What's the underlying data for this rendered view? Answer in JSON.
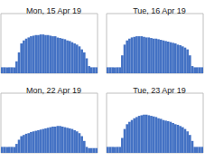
{
  "chart_data": [
    {
      "type": "bar",
      "title": "Mon, 15 Apr 19",
      "categories": [
        null,
        null,
        null,
        null,
        null,
        null,
        null,
        null,
        null,
        null,
        null,
        null,
        null,
        null,
        null,
        null,
        null,
        null,
        null,
        null,
        null,
        null,
        null,
        null,
        null,
        null,
        null,
        null,
        null,
        null,
        null,
        null,
        null,
        null,
        null,
        null,
        null,
        null,
        null,
        null
      ],
      "values": [
        10,
        10,
        10,
        10,
        10,
        10,
        20,
        35,
        50,
        55,
        58,
        60,
        62,
        63,
        64,
        64,
        65,
        65,
        64,
        64,
        63,
        62,
        62,
        60,
        59,
        58,
        57,
        55,
        54,
        52,
        50,
        48,
        45,
        40,
        35,
        25,
        12,
        10,
        10,
        10
      ],
      "color": "#4472c4",
      "ylim": [
        0,
        100
      ],
      "tick_labels": false,
      "grid": false
    },
    {
      "type": "bar",
      "title": "Tue, 16 Apr 19",
      "categories": [
        null,
        null,
        null,
        null,
        null,
        null,
        null,
        null,
        null,
        null,
        null,
        null,
        null,
        null,
        null,
        null,
        null,
        null,
        null,
        null,
        null,
        null,
        null,
        null,
        null,
        null,
        null,
        null,
        null,
        null,
        null,
        null,
        null,
        null,
        null,
        null,
        null,
        null,
        null,
        null
      ],
      "values": [
        10,
        10,
        10,
        10,
        10,
        10,
        30,
        48,
        55,
        58,
        60,
        61,
        62,
        62,
        62,
        61,
        60,
        60,
        59,
        58,
        58,
        57,
        56,
        55,
        54,
        53,
        52,
        51,
        50,
        48,
        47,
        45,
        43,
        40,
        30,
        12,
        10,
        10,
        10,
        10
      ],
      "color": "#4472c4",
      "ylim": [
        0,
        100
      ],
      "tick_labels": false,
      "grid": false
    },
    {
      "type": "bar",
      "title": "Mon, 22 Apr 19",
      "categories": [
        null,
        null,
        null,
        null,
        null,
        null,
        null,
        null,
        null,
        null,
        null,
        null,
        null,
        null,
        null,
        null,
        null,
        null,
        null,
        null,
        null,
        null,
        null,
        null,
        null,
        null,
        null,
        null,
        null,
        null,
        null,
        null,
        null,
        null,
        null,
        null,
        null,
        null,
        null,
        null
      ],
      "values": [
        10,
        10,
        10,
        10,
        10,
        10,
        15,
        22,
        28,
        30,
        32,
        33,
        35,
        36,
        37,
        38,
        39,
        40,
        41,
        42,
        43,
        44,
        44,
        45,
        45,
        44,
        43,
        42,
        41,
        40,
        38,
        36,
        33,
        28,
        20,
        10,
        8,
        8,
        8,
        8
      ],
      "color": "#4472c4",
      "ylim": [
        0,
        100
      ],
      "tick_labels": false,
      "grid": false
    },
    {
      "type": "bar",
      "title": "Tue, 23 Apr 19",
      "categories": [
        null,
        null,
        null,
        null,
        null,
        null,
        null,
        null,
        null,
        null,
        null,
        null,
        null,
        null,
        null,
        null,
        null,
        null,
        null,
        null,
        null,
        null,
        null,
        null,
        null,
        null,
        null,
        null,
        null,
        null,
        null,
        null,
        null,
        null,
        null,
        null,
        null,
        null,
        null,
        null
      ],
      "values": [
        10,
        10,
        10,
        10,
        10,
        10,
        25,
        40,
        48,
        52,
        55,
        58,
        60,
        62,
        63,
        64,
        64,
        63,
        62,
        61,
        60,
        58,
        57,
        55,
        54,
        53,
        52,
        50,
        48,
        47,
        45,
        43,
        40,
        36,
        30,
        20,
        10,
        10,
        10,
        10
      ],
      "color": "#4472c4",
      "ylim": [
        0,
        100
      ],
      "tick_labels": false,
      "grid": false
    }
  ]
}
